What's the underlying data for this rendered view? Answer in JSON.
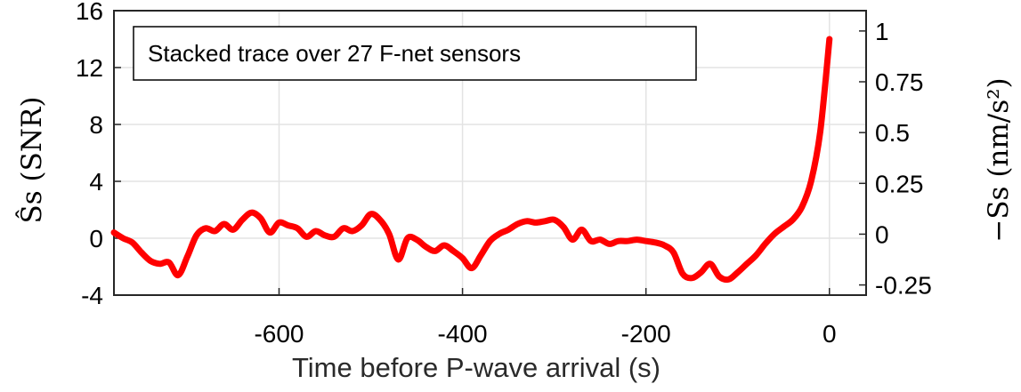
{
  "chart_data": {
    "type": "line",
    "annotation": "Stacked trace over 27 F-net sensors",
    "xlabel": "Time before P-wave arrival (s)",
    "ylabel_left": "Ŝs (SNR)",
    "ylabel_right": "−Ss (nm/s²)",
    "xlim": [
      -780,
      40
    ],
    "ylim_left": [
      -4,
      16
    ],
    "ylim_right": [
      -0.3,
      1.1
    ],
    "x_ticks": [
      -600,
      -400,
      -200,
      0
    ],
    "x_tick_labels": [
      "-600",
      "-400",
      "-200",
      "0"
    ],
    "y_ticks_left": [
      -4,
      0,
      4,
      8,
      12,
      16
    ],
    "y_tick_labels_left": [
      "-4",
      "0",
      "4",
      "8",
      "12",
      "16"
    ],
    "y_ticks_right": [
      -0.25,
      0,
      0.25,
      0.5,
      0.75,
      1
    ],
    "y_tick_labels_right": [
      "-0.25",
      "0",
      "0.25",
      "0.5",
      "0.75",
      "1"
    ],
    "grid": true,
    "line_color": "#ff0000",
    "series": [
      {
        "x": [
          -780,
          -770,
          -760,
          -750,
          -740,
          -730,
          -720,
          -710,
          -700,
          -690,
          -680,
          -670,
          -660,
          -650,
          -640,
          -630,
          -620,
          -610,
          -600,
          -590,
          -580,
          -570,
          -560,
          -550,
          -540,
          -530,
          -520,
          -510,
          -500,
          -490,
          -480,
          -470,
          -460,
          -450,
          -440,
          -430,
          -420,
          -410,
          -400,
          -390,
          -380,
          -370,
          -360,
          -350,
          -340,
          -330,
          -320,
          -310,
          -300,
          -290,
          -280,
          -270,
          -260,
          -250,
          -240,
          -230,
          -220,
          -210,
          -200,
          -190,
          -180,
          -170,
          -160,
          -150,
          -140,
          -130,
          -120,
          -110,
          -100,
          -90,
          -80,
          -70,
          -60,
          -50,
          -40,
          -30,
          -20,
          -10,
          0
        ],
        "y": [
          0.4,
          0.0,
          -0.3,
          -1.0,
          -1.6,
          -1.8,
          -1.7,
          -2.6,
          -1.3,
          0.2,
          0.7,
          0.5,
          1.0,
          0.6,
          1.3,
          1.8,
          1.4,
          0.4,
          1.1,
          0.9,
          0.7,
          0.1,
          0.5,
          0.2,
          0.1,
          0.7,
          0.5,
          0.9,
          1.7,
          1.3,
          0.3,
          -1.5,
          0.0,
          -0.1,
          -0.6,
          -0.9,
          -0.5,
          -0.9,
          -1.4,
          -2.1,
          -1.2,
          -0.2,
          0.3,
          0.6,
          1.0,
          1.2,
          1.1,
          1.2,
          1.3,
          0.8,
          -0.1,
          0.6,
          -0.2,
          -0.1,
          -0.4,
          -0.2,
          -0.2,
          -0.1,
          -0.2,
          -0.3,
          -0.5,
          -1.0,
          -2.5,
          -2.8,
          -2.4,
          -1.8,
          -2.7,
          -2.9,
          -2.4,
          -1.8,
          -1.2,
          -0.4,
          0.3,
          0.8,
          1.3,
          2.2,
          4.0,
          7.5,
          14.0
        ]
      }
    ]
  }
}
